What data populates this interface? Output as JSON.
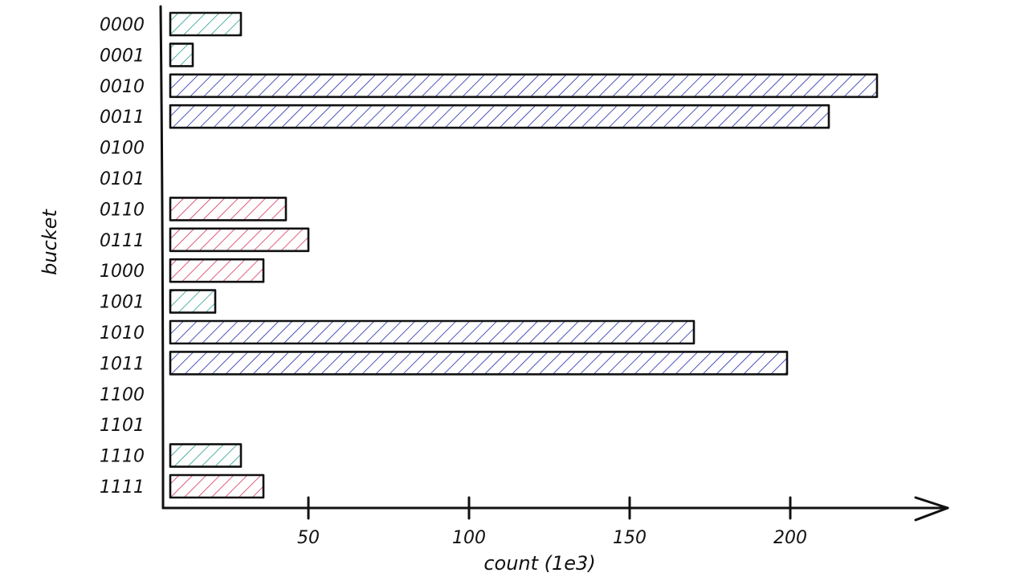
{
  "chart_data": {
    "type": "bar",
    "orientation": "horizontal",
    "title": "",
    "xlabel": "count (1e3)",
    "ylabel": "bucket",
    "xlim": [
      0,
      240
    ],
    "xticks": [
      50,
      100,
      150,
      200
    ],
    "grid": false,
    "legend": "none",
    "style": "hand-drawn, hatched bars",
    "categories": [
      "0000",
      "0001",
      "0010",
      "0011",
      "0100",
      "0101",
      "0110",
      "0111",
      "1000",
      "1001",
      "1010",
      "1011",
      "1100",
      "1101",
      "1110",
      "1111"
    ],
    "values": [
      22,
      7,
      220,
      205,
      0,
      0,
      36,
      43,
      29,
      14,
      163,
      192,
      0,
      0,
      22,
      29
    ],
    "bar_colors": [
      "#2a9d8f",
      "#2a9d8f",
      "#1f2aa8",
      "#1f2aa8",
      "#1f2aa8",
      "#1f2aa8",
      "#d6335c",
      "#d6335c",
      "#d6335c",
      "#2a9d8f",
      "#1f2aa8",
      "#1f2aa8",
      "#1f2aa8",
      "#1f2aa8",
      "#2a9d8f",
      "#d6335c"
    ]
  }
}
